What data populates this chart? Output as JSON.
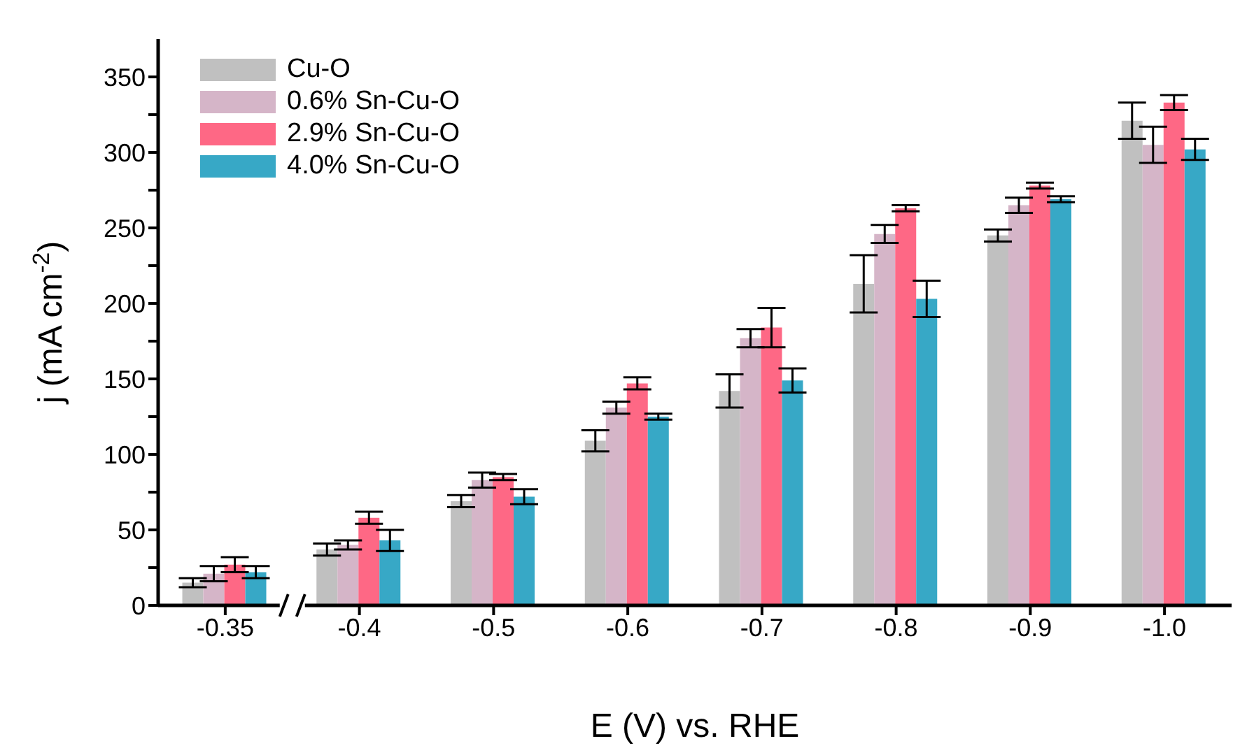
{
  "chart_data": {
    "type": "bar",
    "xlabel": "E (V) vs. RHE",
    "ylabel": "j (mA cm$^{-2}$)",
    "categories": [
      "-0.35",
      "-0.4",
      "-0.5",
      "-0.6",
      "-0.7",
      "-0.8",
      "-0.9",
      "-1.0"
    ],
    "series": [
      {
        "name": "Cu-O",
        "color": "#c0c0c0",
        "values": [
          15,
          37,
          69,
          109,
          142,
          213,
          245,
          321
        ],
        "errors": [
          3,
          4,
          4,
          7,
          11,
          19,
          4,
          12
        ]
      },
      {
        "name": "0.6% Sn-Cu-O",
        "color": "#d5b5c8",
        "values": [
          21,
          40,
          83,
          131,
          177,
          246,
          265,
          305
        ],
        "errors": [
          5,
          3,
          5,
          4,
          6,
          6,
          5,
          12
        ]
      },
      {
        "name": "2.9% Sn-Cu-O",
        "color": "#fe6885",
        "values": [
          27,
          58,
          85,
          147,
          184,
          263,
          278,
          333
        ],
        "errors": [
          5,
          4,
          2,
          4,
          13,
          2,
          2,
          5
        ]
      },
      {
        "name": "4.0% Sn-Cu-O",
        "color": "#37a8c6",
        "values": [
          22,
          43,
          72,
          125,
          149,
          203,
          269,
          302
        ],
        "errors": [
          4,
          7,
          5,
          2,
          8,
          12,
          2,
          7
        ]
      }
    ],
    "ylim": [
      0,
      375
    ],
    "yticks": [
      0,
      {
        "value": 25,
        "label": null
      },
      50,
      {
        "value": 75,
        "label": null
      },
      100,
      {
        "value": 125,
        "label": null
      },
      150,
      {
        "value": 175,
        "label": null
      },
      200,
      {
        "value": 225,
        "label": null
      },
      250,
      {
        "value": 275,
        "label": null
      },
      300,
      {
        "value": 325,
        "label": null
      },
      350
    ],
    "legend": "top left"
  }
}
